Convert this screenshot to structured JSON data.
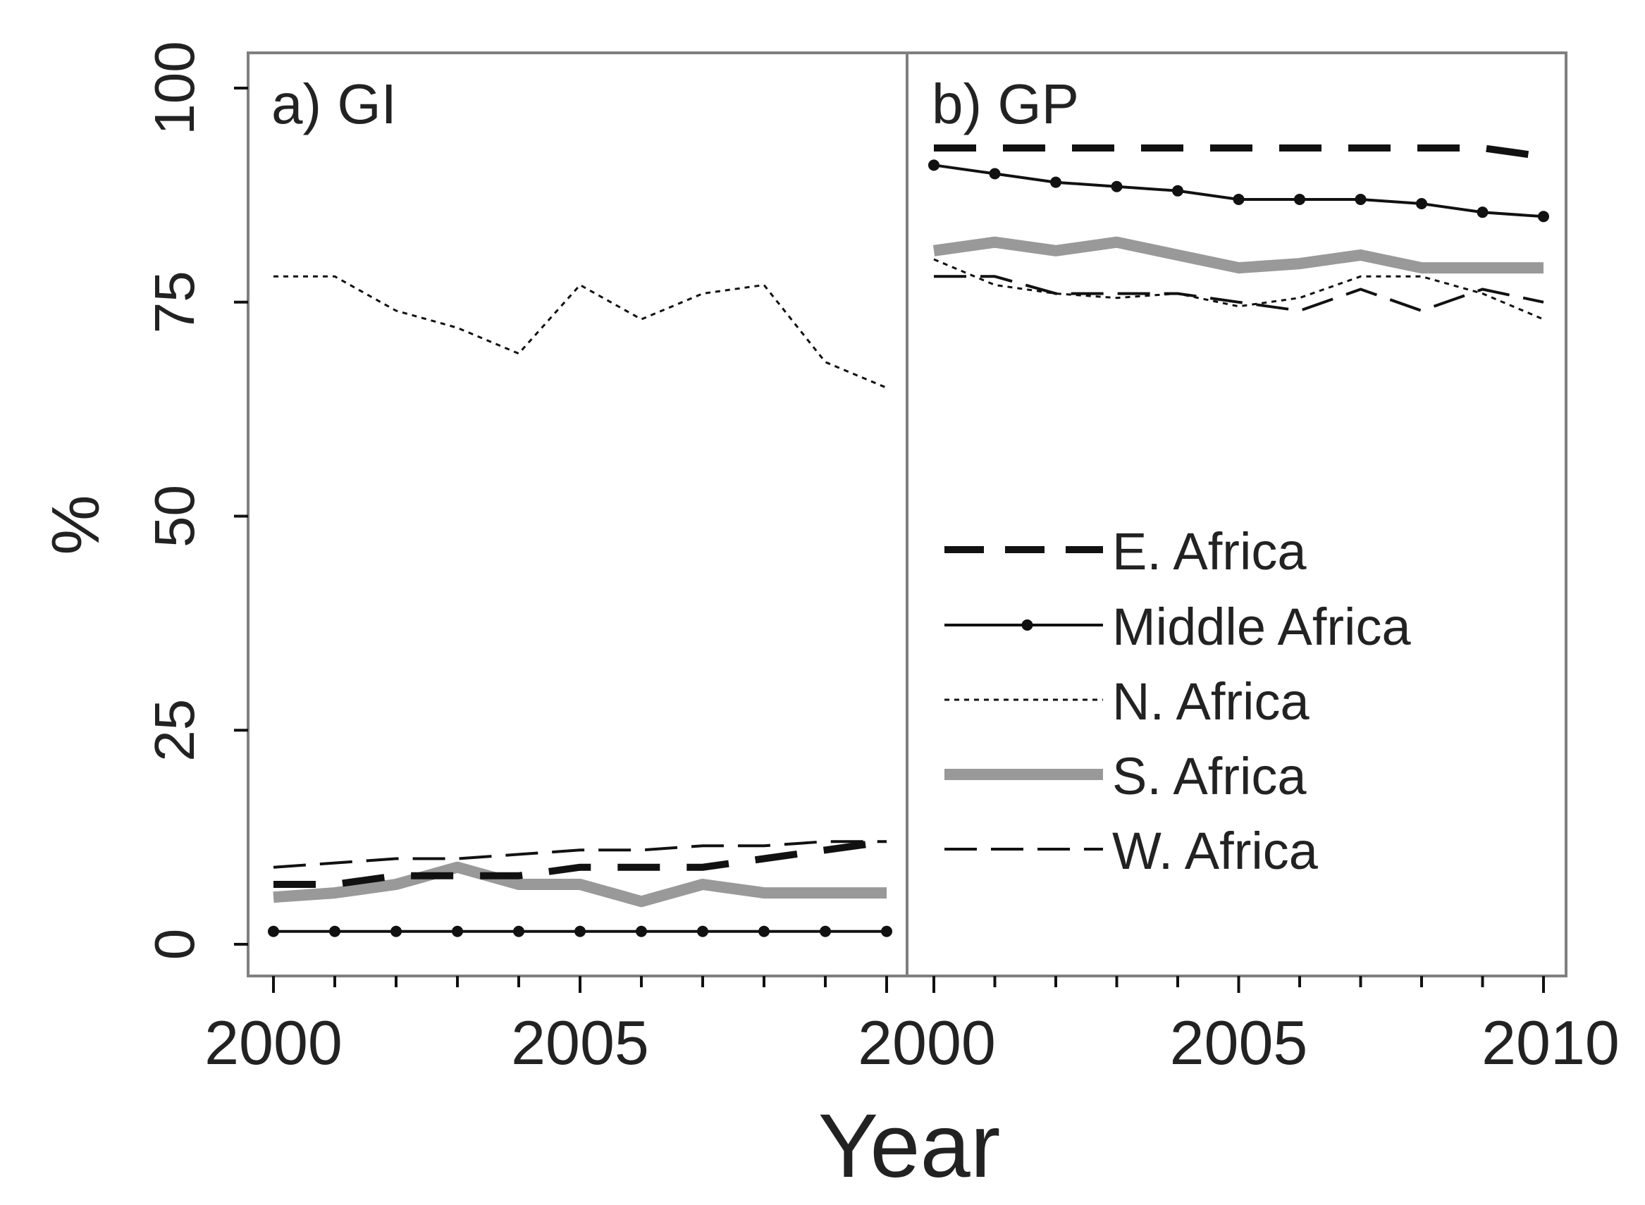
{
  "chart_data": {
    "type": "line",
    "ylabel": "%",
    "xlabel": "Year",
    "ylim": [
      0,
      100
    ],
    "y_ticks": [
      "0",
      "25",
      "50",
      "75",
      "100"
    ],
    "x_ticks_left": [
      "2000",
      "2005"
    ],
    "x_ticks_right": [
      "2000",
      "2005",
      "2010"
    ],
    "x": [
      2000,
      2001,
      2002,
      2003,
      2004,
      2005,
      2006,
      2007,
      2008,
      2009,
      2010
    ],
    "panels": [
      {
        "title": "a) GI",
        "series": [
          {
            "name": "E. Africa",
            "style": "dashed-bold",
            "values": [
              7,
              7,
              8,
              8,
              8,
              9,
              9,
              9,
              10,
              11,
              12
            ]
          },
          {
            "name": "Middle Africa",
            "style": "solid-dots",
            "values": [
              1.5,
              1.5,
              1.5,
              1.5,
              1.5,
              1.5,
              1.5,
              1.5,
              1.5,
              1.5,
              1.5
            ]
          },
          {
            "name": "N. Africa",
            "style": "dotted",
            "values": [
              78,
              78,
              74,
              72,
              69,
              77,
              73,
              76,
              77,
              68,
              65
            ]
          },
          {
            "name": "S. Africa",
            "style": "gray-thick",
            "values": [
              5.5,
              6,
              7,
              9,
              7,
              7,
              5,
              7,
              6,
              6,
              6
            ]
          },
          {
            "name": "W. Africa",
            "style": "dashed-thin",
            "values": [
              9,
              9.5,
              10,
              10,
              10.5,
              11,
              11,
              11.5,
              11.5,
              12,
              12
            ]
          }
        ]
      },
      {
        "title": "b) GP",
        "series": [
          {
            "name": "E. Africa",
            "style": "dashed-bold",
            "values": [
              93,
              93,
              93,
              93,
              93,
              93,
              93,
              93,
              93,
              93,
              92
            ]
          },
          {
            "name": "Middle Africa",
            "style": "solid-dots",
            "values": [
              91,
              90,
              89,
              88.5,
              88,
              87,
              87,
              87,
              86.5,
              85.5,
              85
            ]
          },
          {
            "name": "N. Africa",
            "style": "dotted",
            "values": [
              80,
              77,
              76,
              75.5,
              76,
              74.5,
              75.5,
              78,
              78,
              76,
              73
            ]
          },
          {
            "name": "S. Africa",
            "style": "gray-thick",
            "values": [
              81,
              82,
              81,
              82,
              80.5,
              79,
              79.5,
              80.5,
              79,
              79,
              79
            ]
          },
          {
            "name": "W. Africa",
            "style": "dashed-thin",
            "values": [
              78,
              78,
              76,
              76,
              76,
              75,
              74,
              76.5,
              74,
              76.5,
              75
            ]
          }
        ]
      }
    ],
    "legend": [
      "E. Africa",
      "Middle Africa",
      "N. Africa",
      "S. Africa",
      "W. Africa"
    ],
    "colors": {
      "black": "#111111",
      "gray": "#999999",
      "frame": "#7f7f7f",
      "text": "#222222"
    }
  }
}
